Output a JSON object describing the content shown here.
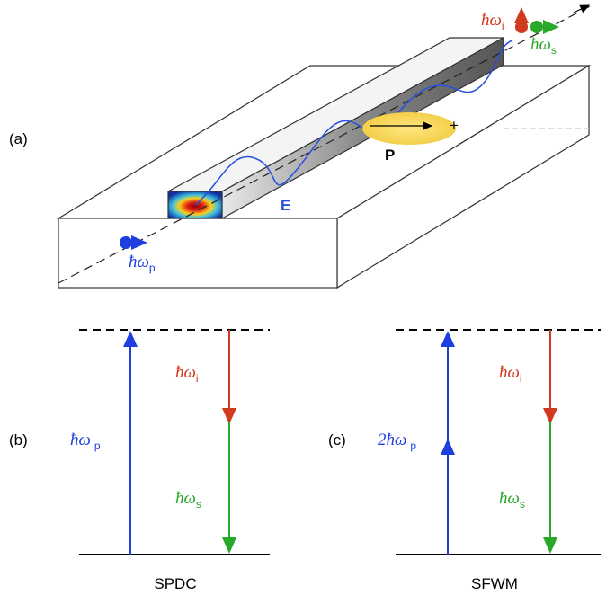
{
  "panel_a": {
    "tag": "(a)",
    "idler": {
      "symbol": "ħω",
      "sub": "i"
    },
    "signal": {
      "symbol": "ħω",
      "sub": "s"
    },
    "pump": {
      "symbol": "ħω",
      "sub": "p"
    },
    "field": "E",
    "polarization": "P",
    "charge": "+"
  },
  "panel_b": {
    "tag": "(b)",
    "pump": {
      "symbol": "ħω",
      "sub": "p"
    },
    "idler": {
      "symbol": "ħω",
      "sub": "i"
    },
    "signal": {
      "symbol": "ħω",
      "sub": "s"
    },
    "caption": "SPDC"
  },
  "panel_c": {
    "tag": "(c)",
    "pump": {
      "symbol": "2ħω",
      "sub": "p"
    },
    "idler": {
      "symbol": "ħω",
      "sub": "i"
    },
    "signal": {
      "symbol": "ħω",
      "sub": "s"
    },
    "caption": "SFWM"
  }
}
